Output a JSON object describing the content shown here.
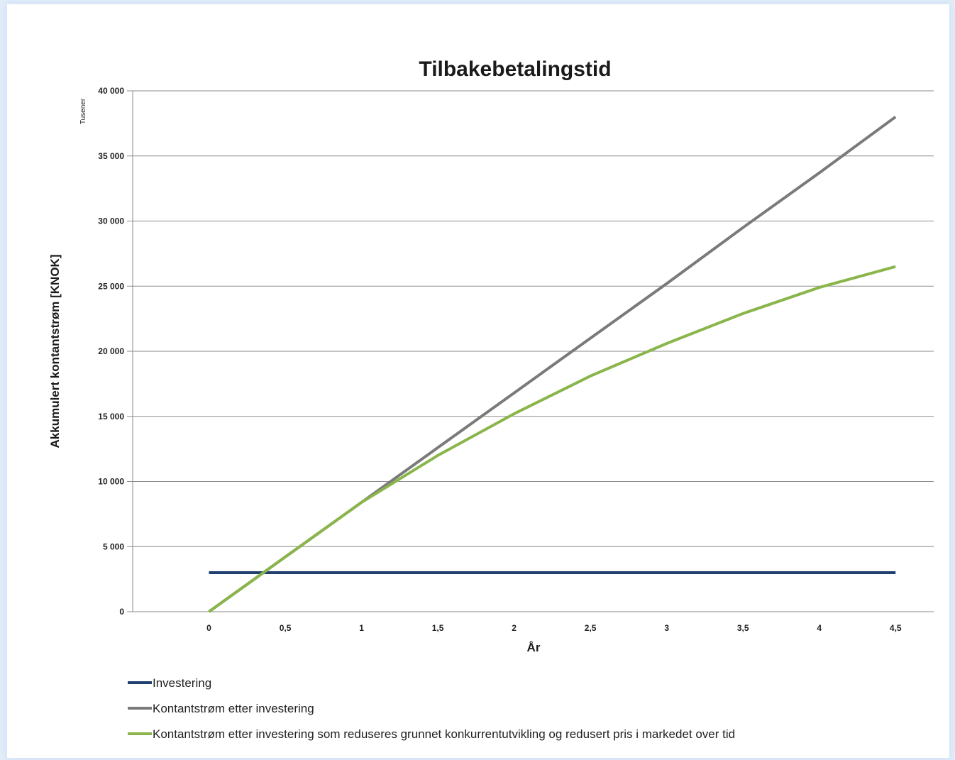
{
  "chart_data": {
    "type": "line",
    "title": "Tilbakebetalingstid",
    "xlabel": "År",
    "ylabel": "Akkumulert kontantstrøm [KNOK]",
    "y_unit_label": "Tusener",
    "x_ticks": [
      "0",
      "0,5",
      "1",
      "1,5",
      "2",
      "2,5",
      "3",
      "3,5",
      "4",
      "4,5"
    ],
    "y_ticks": [
      "0",
      "5 000",
      "10 000",
      "15 000",
      "20 000",
      "25 000",
      "30 000",
      "35 000",
      "40 000"
    ],
    "xlim": [
      -0.5,
      4.75
    ],
    "ylim": [
      0,
      40000
    ],
    "grid": true,
    "legend_position": "bottom",
    "series": [
      {
        "name": "Investering",
        "color": "#1f3f6e",
        "x": [
          0,
          4.5
        ],
        "values": [
          3000,
          3000
        ]
      },
      {
        "name": "Kontantstrøm etter investering",
        "color": "#7a7a7a",
        "x": [
          0,
          0.5,
          1,
          1.5,
          2,
          2.5,
          3,
          3.5,
          4,
          4.5
        ],
        "values": [
          0,
          4200,
          8400,
          12600,
          16800,
          21000,
          25200,
          29500,
          33700,
          38000
        ]
      },
      {
        "name": "Kontantstrøm etter investering som reduseres grunnet konkurrentutvikling og redusert pris i markedet over tid",
        "color": "#8ab54a",
        "x": [
          0,
          0.5,
          1,
          1.5,
          2,
          2.5,
          3,
          3.5,
          4,
          4.5
        ],
        "values": [
          0,
          4200,
          8400,
          12000,
          15200,
          18100,
          20600,
          22900,
          24900,
          26500
        ]
      }
    ]
  }
}
